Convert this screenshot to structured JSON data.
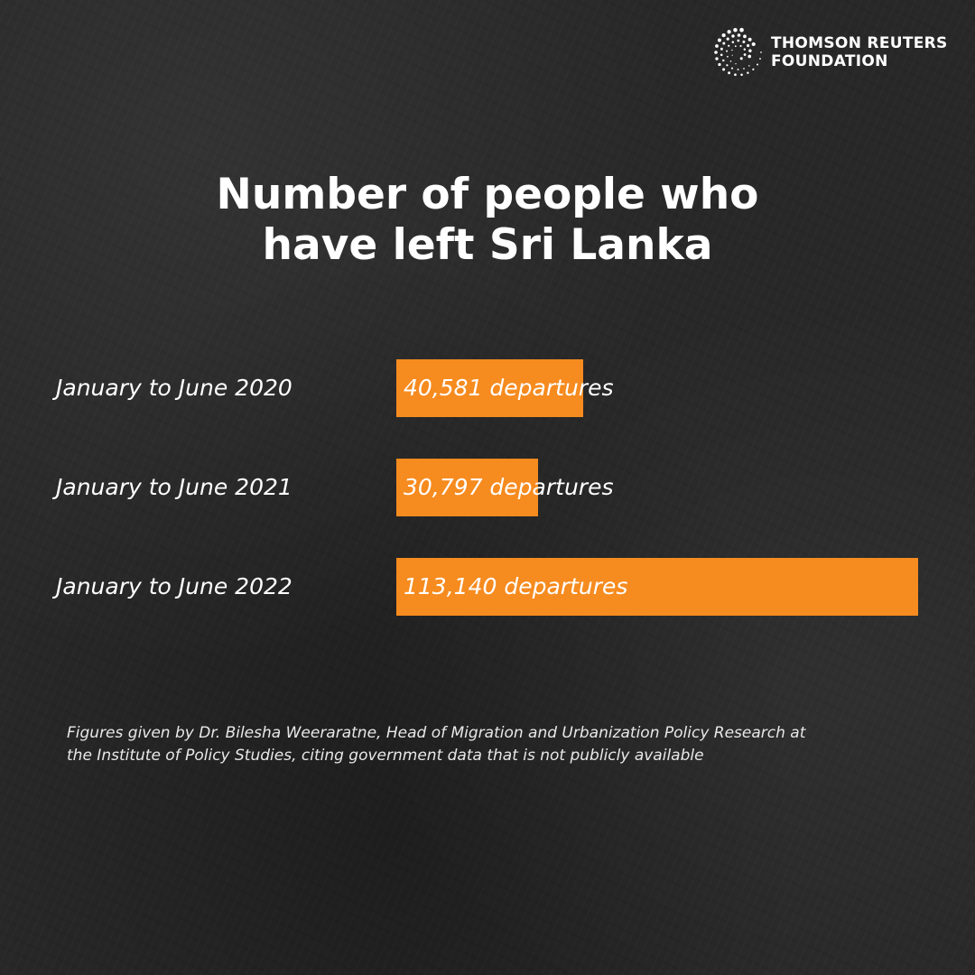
{
  "brand": {
    "line1": "THOMSON REUTERS",
    "line2": "FOUNDATION",
    "logo_icon": "thomson-reuters-dot-swirl-icon"
  },
  "title": {
    "line1": "Number of people who",
    "line2": "have left Sri Lanka"
  },
  "chart_data": {
    "type": "bar",
    "orientation": "horizontal",
    "categories": [
      "January to June 2020",
      "January to June 2021",
      "January to June 2022"
    ],
    "values": [
      40581,
      30797,
      113140
    ],
    "value_labels": [
      "40,581 departures",
      "30,797 departures",
      "113,140 departures"
    ],
    "xlim": [
      0,
      113140
    ],
    "bar_color": "#f68b1f",
    "grid": false,
    "legend": "none"
  },
  "note": {
    "line1": "Figures given by Dr. Bilesha Weeraratne, Head of Migration and Urbanization Policy Research at",
    "line2": "the Institute of Policy Studies, citing government data that is not publicly available"
  }
}
